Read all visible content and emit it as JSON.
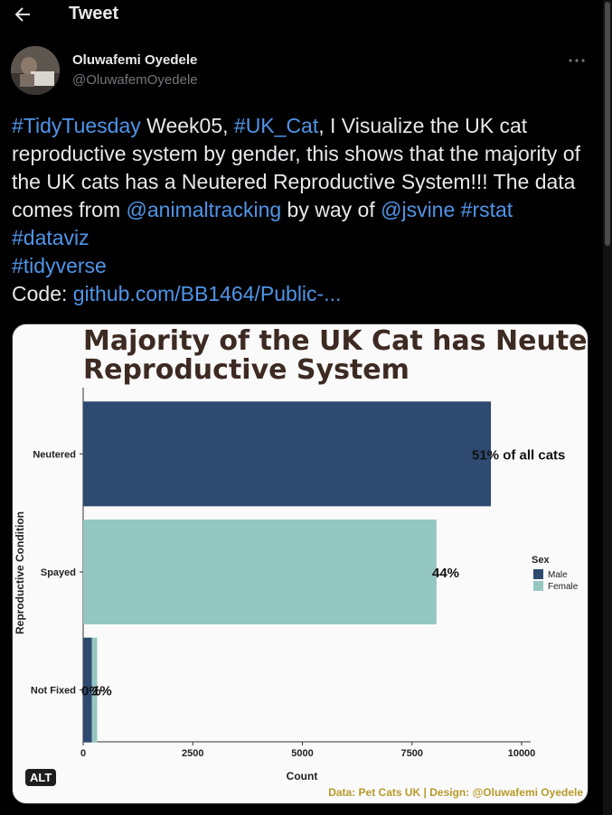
{
  "header": {
    "title": "Tweet",
    "back_icon": "arrow-left-icon"
  },
  "author": {
    "name": "Oluwafemi Oyedele",
    "handle": "@OluwafemOyedele"
  },
  "tweet": {
    "parts": [
      {
        "text": "#TidyTuesday",
        "link": true
      },
      {
        "text": "  Week05, ",
        "link": false
      },
      {
        "text": "#UK_Cat",
        "link": true
      },
      {
        "text": ", I Visualize the UK cat reproductive system by gender,  this shows that the majority of the UK cats has a Neutered Reproductive System!!! The data comes from ",
        "link": false
      },
      {
        "text": "@animaltracking",
        "link": true
      },
      {
        "text": " by way of ",
        "link": false
      },
      {
        "text": "@jsvine",
        "link": true
      },
      {
        "text": " ",
        "link": false
      },
      {
        "text": "#rstat",
        "link": true
      },
      {
        "text": " ",
        "link": false
      },
      {
        "text": "#dataviz",
        "link": true
      },
      {
        "text": " ",
        "link": false
      },
      {
        "text": "#tidyverse",
        "link": true
      }
    ],
    "code_label": "Code: ",
    "code_link": "github.com/BB1464/Public-..."
  },
  "media_badge": "ALT",
  "colors": {
    "male": "#2e4a70",
    "female": "#95c7c2",
    "link": "#4f95e8",
    "caption": "#b89a2a"
  },
  "chart_data": {
    "type": "bar",
    "title": "Majority of the UK Cat has Neutered Reproductive System",
    "title_lines": [
      "Majority of the UK Cat has Neutered",
      "Reproductive System"
    ],
    "xlabel": "Count",
    "ylabel": "Reproductive Condition",
    "categories": [
      "Neutered",
      "Spayed",
      "Not Fixed"
    ],
    "series": [
      {
        "name": "Male",
        "values": [
          9300,
          0,
          200
        ]
      },
      {
        "name": "Female",
        "values": [
          0,
          8060,
          120
        ]
      }
    ],
    "data_labels": [
      "51% of all cats",
      "44%",
      "0%",
      "1%"
    ],
    "xlim": [
      0,
      10000
    ],
    "xticks": [
      "0",
      "2500",
      "5000",
      "7500",
      "10000"
    ],
    "xtick_values": [
      0,
      2500,
      5000,
      7500,
      10000
    ],
    "legend_title": "Sex",
    "legend_position": "right",
    "caption": "Data: Pet Cats UK | Design: @Oluwafemi Oyedele"
  }
}
